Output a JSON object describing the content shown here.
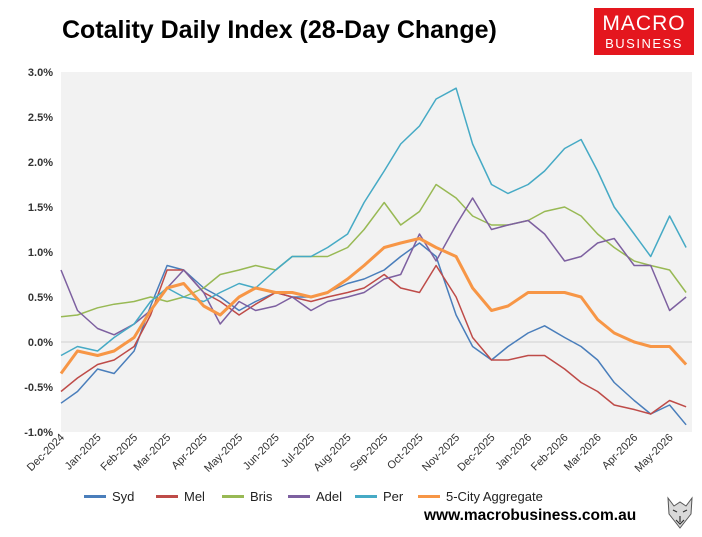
{
  "title": "Cotality Daily Index (28-Day Change)",
  "logo": {
    "line1": "MACRO",
    "line2": "BUSINESS",
    "color": "#e4161e"
  },
  "url": "www.macrobusiness.com.au",
  "chart_data": {
    "type": "line",
    "title": "Cotality Daily Index (28-Day Change)",
    "xlabel": "",
    "ylabel": "",
    "ylim": [
      -1.0,
      3.0
    ],
    "yticks": [
      "3.0%",
      "2.5%",
      "2.0%",
      "1.5%",
      "1.0%",
      "0.5%",
      "0.0%",
      "-0.5%",
      "-1.0%"
    ],
    "x_ticks": [
      "Dec-2024",
      "Jan-2025",
      "Feb-2025",
      "Mar-2025",
      "Apr-2025",
      "May-2025",
      "Jun-2025",
      "Jul-2025",
      "Aug-2025",
      "Sep-2025",
      "Oct-2025",
      "Nov-2025",
      "Dec-2025",
      "Jan-2026",
      "Feb-2026",
      "Mar-2026",
      "Apr-2026",
      "May-2026"
    ],
    "x": [
      "2024-12-01",
      "2024-12-15",
      "2025-01-01",
      "2025-01-15",
      "2025-02-01",
      "2025-02-15",
      "2025-03-01",
      "2025-03-15",
      "2025-04-01",
      "2025-04-15",
      "2025-05-01",
      "2025-05-15",
      "2025-06-01",
      "2025-06-15",
      "2025-07-01",
      "2025-07-15",
      "2025-08-01",
      "2025-08-15",
      "2025-09-01",
      "2025-09-15",
      "2025-10-01",
      "2025-10-15",
      "2025-11-01",
      "2025-11-15",
      "2025-12-01",
      "2025-12-15",
      "2026-01-01",
      "2026-01-15",
      "2026-02-01",
      "2026-02-15",
      "2026-03-01",
      "2026-03-15",
      "2026-04-01",
      "2026-04-15",
      "2026-05-01",
      "2026-05-15"
    ],
    "series": [
      {
        "name": "Syd",
        "color": "#4a7ebb",
        "values": [
          -0.68,
          -0.55,
          -0.3,
          -0.35,
          -0.1,
          0.4,
          0.85,
          0.8,
          0.6,
          0.5,
          0.35,
          0.45,
          0.55,
          0.5,
          0.5,
          0.55,
          0.65,
          0.7,
          0.8,
          0.95,
          1.1,
          0.95,
          0.3,
          -0.05,
          -0.2,
          -0.05,
          0.1,
          0.18,
          0.05,
          -0.05,
          -0.2,
          -0.45,
          -0.65,
          -0.8,
          -0.7,
          -0.92
        ]
      },
      {
        "name": "Mel",
        "color": "#be4b48",
        "values": [
          -0.55,
          -0.4,
          -0.25,
          -0.2,
          -0.05,
          0.3,
          0.8,
          0.8,
          0.55,
          0.45,
          0.3,
          0.42,
          0.55,
          0.5,
          0.45,
          0.5,
          0.55,
          0.6,
          0.75,
          0.6,
          0.55,
          0.85,
          0.5,
          0.05,
          -0.2,
          -0.2,
          -0.15,
          -0.15,
          -0.3,
          -0.45,
          -0.55,
          -0.7,
          -0.75,
          -0.8,
          -0.65,
          -0.72
        ]
      },
      {
        "name": "Bris",
        "color": "#98b954",
        "values": [
          0.28,
          0.3,
          0.38,
          0.42,
          0.45,
          0.5,
          0.45,
          0.5,
          0.6,
          0.75,
          0.8,
          0.85,
          0.8,
          0.95,
          0.95,
          0.95,
          1.05,
          1.25,
          1.55,
          1.3,
          1.45,
          1.75,
          1.6,
          1.4,
          1.3,
          1.3,
          1.35,
          1.45,
          1.5,
          1.4,
          1.2,
          1.05,
          0.9,
          0.85,
          0.8,
          0.55
        ]
      },
      {
        "name": "Adel",
        "color": "#7d60a0",
        "values": [
          0.8,
          0.35,
          0.15,
          0.08,
          0.2,
          0.35,
          0.6,
          0.8,
          0.55,
          0.2,
          0.45,
          0.35,
          0.4,
          0.5,
          0.35,
          0.45,
          0.5,
          0.55,
          0.7,
          0.75,
          1.2,
          0.9,
          1.3,
          1.6,
          1.25,
          1.3,
          1.35,
          1.2,
          0.9,
          0.95,
          1.1,
          1.15,
          0.85,
          0.85,
          0.35,
          0.5
        ]
      },
      {
        "name": "Per",
        "color": "#46aac5",
        "values": [
          -0.15,
          -0.05,
          -0.1,
          0.05,
          0.2,
          0.45,
          0.6,
          0.5,
          0.45,
          0.55,
          0.65,
          0.6,
          0.8,
          0.95,
          0.95,
          1.05,
          1.2,
          1.55,
          1.9,
          2.2,
          2.4,
          2.7,
          2.82,
          2.2,
          1.75,
          1.65,
          1.75,
          1.9,
          2.15,
          2.25,
          1.9,
          1.5,
          1.2,
          0.95,
          1.4,
          1.05
        ]
      },
      {
        "name": "5-City Aggregate",
        "color": "#f79646",
        "values": [
          -0.35,
          -0.1,
          -0.15,
          -0.1,
          0.05,
          0.35,
          0.6,
          0.65,
          0.4,
          0.3,
          0.5,
          0.6,
          0.55,
          0.55,
          0.5,
          0.55,
          0.7,
          0.85,
          1.05,
          1.1,
          1.15,
          1.05,
          0.95,
          0.6,
          0.35,
          0.4,
          0.55,
          0.55,
          0.55,
          0.5,
          0.25,
          0.1,
          0.0,
          -0.05,
          -0.05,
          -0.25
        ]
      }
    ],
    "grid": false,
    "legend": "bottom"
  }
}
